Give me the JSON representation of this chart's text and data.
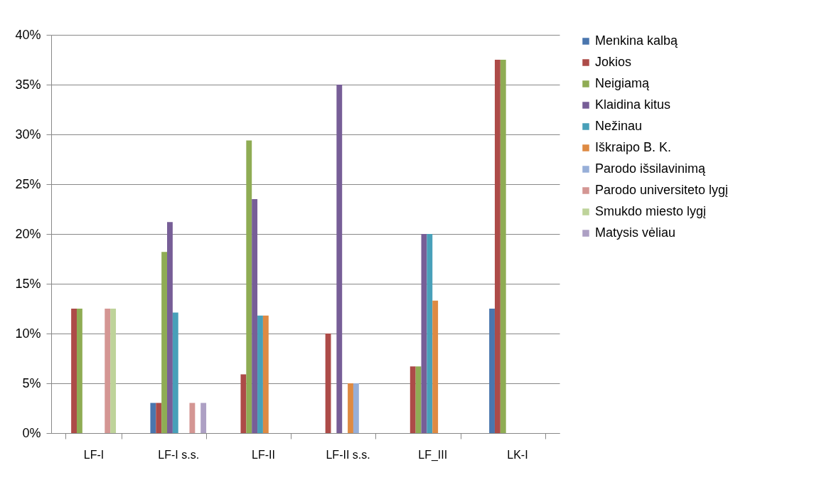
{
  "chart_data": {
    "type": "bar",
    "categories": [
      "LF-I",
      "LF-I s.s.",
      "LF-II",
      "LF-II s.s.",
      "LF_III",
      "LK-I"
    ],
    "series": [
      {
        "name": "Menkina kalbą",
        "color": "#4a76ae",
        "values": [
          0,
          3.03,
          0,
          0,
          0,
          12.5
        ]
      },
      {
        "name": "Jokios",
        "color": "#ad4b48",
        "values": [
          12.5,
          3.03,
          5.9,
          10,
          6.7,
          37.5
        ]
      },
      {
        "name": "Neigiamą",
        "color": "#8fac54",
        "values": [
          12.5,
          18.2,
          29.4,
          0,
          6.7,
          37.5
        ]
      },
      {
        "name": "Klaidina kitus",
        "color": "#775e97",
        "values": [
          0,
          21.2,
          23.5,
          35,
          20,
          0
        ]
      },
      {
        "name": "Nežinau",
        "color": "#48a0b9",
        "values": [
          0,
          12.1,
          11.8,
          0,
          20,
          0
        ]
      },
      {
        "name": "Iškraipo B. K.",
        "color": "#de8a43",
        "values": [
          0,
          0,
          11.8,
          5,
          13.3,
          0
        ]
      },
      {
        "name": "Parodo išsilavinimą",
        "color": "#97afd8",
        "values": [
          0,
          0,
          0,
          5,
          0,
          0
        ]
      },
      {
        "name": "Parodo universiteto lygį",
        "color": "#d49693",
        "values": [
          12.5,
          3.03,
          0,
          0,
          0,
          0
        ]
      },
      {
        "name": "Smukdo miesto lygį",
        "color": "#bed39a",
        "values": [
          12.5,
          0,
          0,
          0,
          0,
          0
        ]
      },
      {
        "name": "Matysis vėliau",
        "color": "#ada0c4",
        "values": [
          0,
          3.03,
          0,
          0,
          0,
          0
        ]
      }
    ],
    "ylim": [
      0,
      40
    ],
    "yticks": [
      {
        "value": 0,
        "label": "0%"
      },
      {
        "value": 5,
        "label": "5%"
      },
      {
        "value": 10,
        "label": "10%"
      },
      {
        "value": 15,
        "label": "15%"
      },
      {
        "value": 20,
        "label": "20%"
      },
      {
        "value": 25,
        "label": "25%"
      },
      {
        "value": 30,
        "label": "30%"
      },
      {
        "value": 35,
        "label": "35%"
      },
      {
        "value": 40,
        "label": "40%"
      }
    ],
    "grid": "y",
    "legend": "right"
  }
}
